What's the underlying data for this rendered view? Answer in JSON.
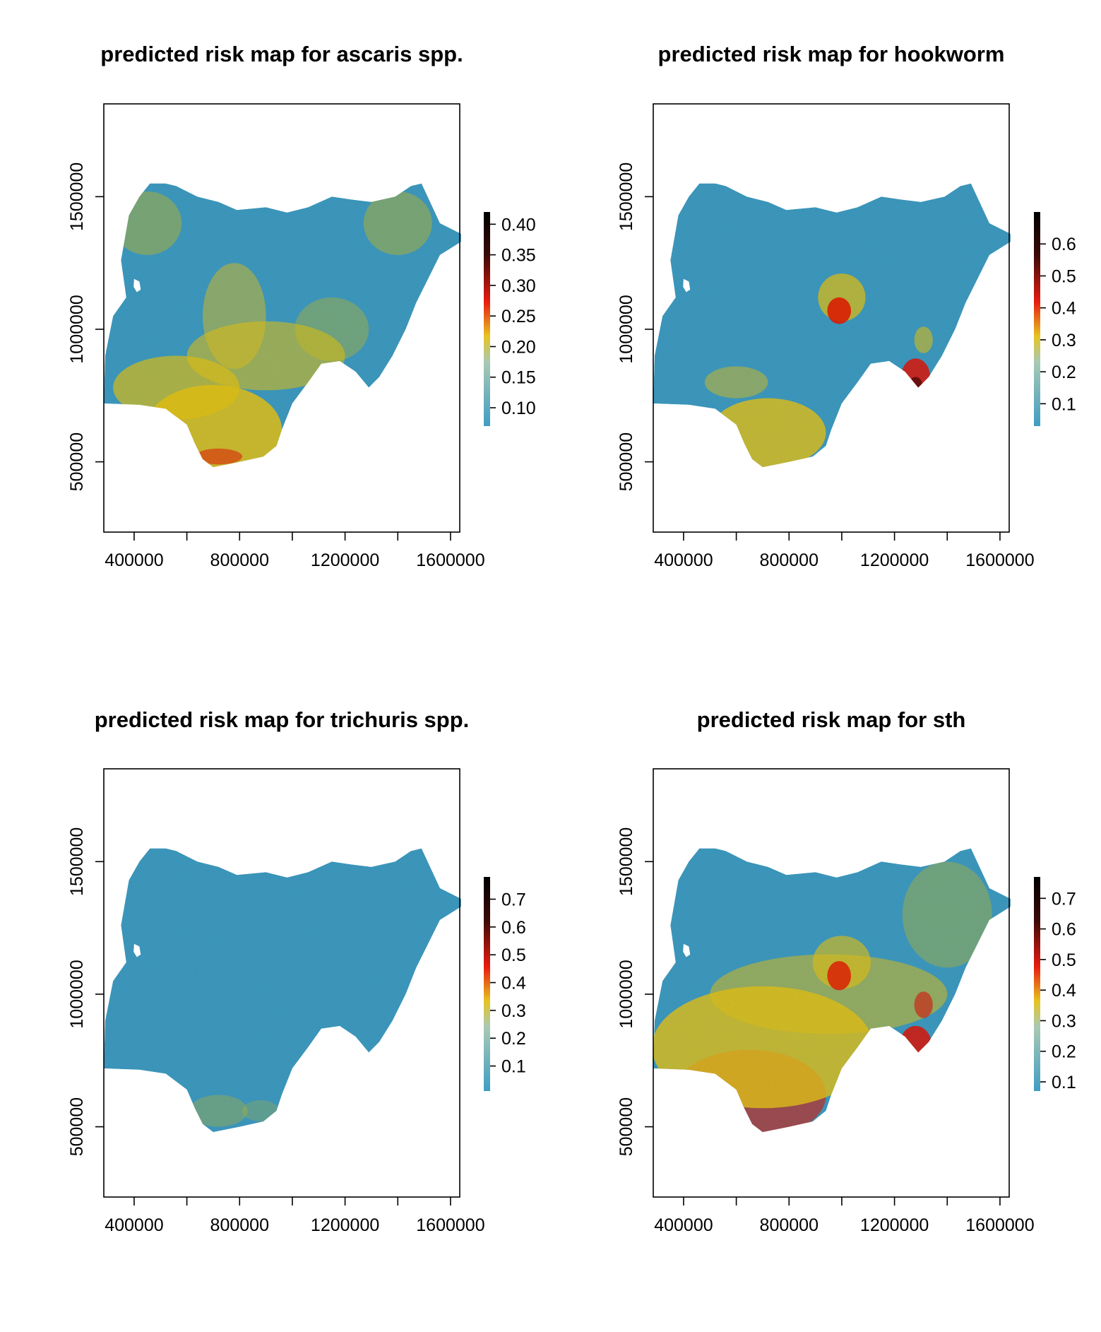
{
  "figure": {
    "panels": [
      {
        "title": "predicted risk map for ascaris spp.",
        "region": "Nigeria",
        "x_ticks": [
          "400000",
          "800000",
          "1200000",
          "1600000"
        ],
        "y_ticks": [
          "500000",
          "1000000",
          "1500000"
        ],
        "legend_ticks": [
          "0.10",
          "0.15",
          "0.20",
          "0.25",
          "0.30",
          "0.35",
          "0.40"
        ],
        "legend_range": [
          0.07,
          0.42
        ],
        "pattern": "ascaris"
      },
      {
        "title": "predicted risk map for hookworm",
        "region": "Nigeria",
        "x_ticks": [
          "400000",
          "800000",
          "1200000",
          "1600000"
        ],
        "y_ticks": [
          "500000",
          "1000000",
          "1500000"
        ],
        "legend_ticks": [
          "0.1",
          "0.2",
          "0.3",
          "0.4",
          "0.5",
          "0.6"
        ],
        "legend_range": [
          0.03,
          0.7
        ],
        "pattern": "hookworm"
      },
      {
        "title": "predicted risk map for trichuris spp.",
        "region": "Nigeria",
        "x_ticks": [
          "400000",
          "800000",
          "1200000",
          "1600000"
        ],
        "y_ticks": [
          "500000",
          "1000000",
          "1500000"
        ],
        "legend_ticks": [
          "0.1",
          "0.2",
          "0.3",
          "0.4",
          "0.5",
          "0.6",
          "0.7"
        ],
        "legend_range": [
          0.01,
          0.78
        ],
        "pattern": "trichuris"
      },
      {
        "title": "predicted risk map for sth",
        "region": "Nigeria",
        "x_ticks": [
          "400000",
          "800000",
          "1200000",
          "1600000"
        ],
        "y_ticks": [
          "500000",
          "1000000",
          "1500000"
        ],
        "legend_ticks": [
          "0.1",
          "0.2",
          "0.3",
          "0.4",
          "0.5",
          "0.6",
          "0.7"
        ],
        "legend_range": [
          0.07,
          0.77
        ],
        "pattern": "sth"
      }
    ],
    "colors": {
      "low": "#3f9dc3",
      "mid": "#e6c420",
      "high": "#e81c10",
      "dark": "#3a0a06",
      "max": "#000000"
    }
  }
}
